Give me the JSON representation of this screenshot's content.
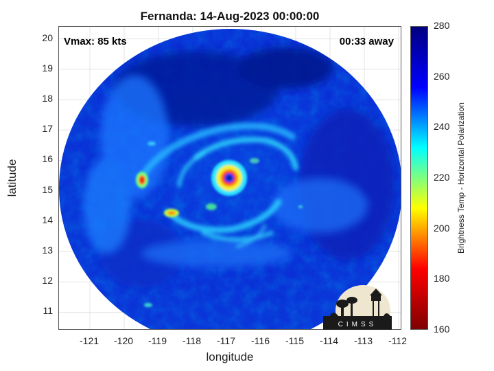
{
  "title": "Fernanda: 14-Aug-2023 00:00:00",
  "vmax_label": "Vmax: 85 kts",
  "time_away_label": "00:33 away",
  "xlabel": "longitude",
  "ylabel": "latitude",
  "colorbar_label": "Brightness Temp - Horizontal Polarization",
  "logo_text": "CIMSS",
  "colorbar_colors": [
    "#7f0000",
    "#ff0000",
    "#ffff00",
    "#00ffff",
    "#0000ff",
    "#00007f"
  ],
  "chart_data": {
    "type": "heatmap",
    "title": "Fernanda: 14-Aug-2023 00:00:00",
    "xlabel": "longitude",
    "ylabel": "latitude",
    "x_ticks": [
      -121,
      -120,
      -119,
      -118,
      -117,
      -116,
      -115,
      -114,
      -113,
      -112
    ],
    "y_ticks": [
      20,
      19,
      18,
      17,
      16,
      15,
      14,
      13,
      12,
      11
    ],
    "xlim": [
      -121.9,
      -111.9
    ],
    "ylim": [
      10.4,
      20.4
    ],
    "colorbar_ticks": [
      280,
      260,
      240,
      220,
      200,
      180,
      160
    ],
    "colorbar_range": [
      160,
      280
    ],
    "colorbar_label": "Brightness Temp - Horizontal Polarization",
    "storm_center": {
      "lon": -116.65,
      "lat": 15.4
    },
    "grid": true
  }
}
